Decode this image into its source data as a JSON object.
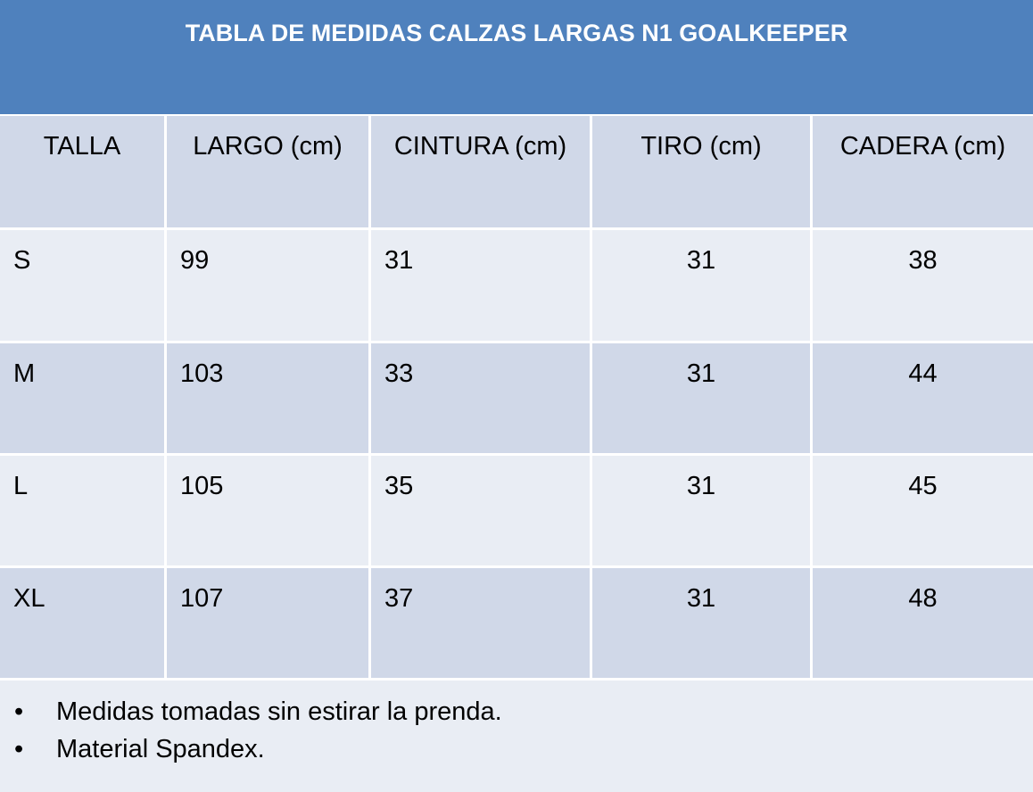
{
  "table": {
    "title": "TABLA DE MEDIDAS CALZAS LARGAS N1 GOALKEEPER",
    "header": [
      "TALLA",
      "LARGO (cm)",
      "CINTURA (cm)",
      "TIRO (cm)",
      "CADERA (cm)"
    ],
    "rows": [
      [
        "S",
        "99",
        "31",
        "31",
        "38"
      ],
      [
        "M",
        "103",
        "33",
        "31",
        "44"
      ],
      [
        "L",
        "105",
        "35",
        "31",
        "45"
      ],
      [
        "XL",
        "107",
        "37",
        "31",
        "48"
      ]
    ],
    "notes": [
      "Medidas tomadas sin estirar la prenda.",
      "Material Spandex."
    ]
  }
}
